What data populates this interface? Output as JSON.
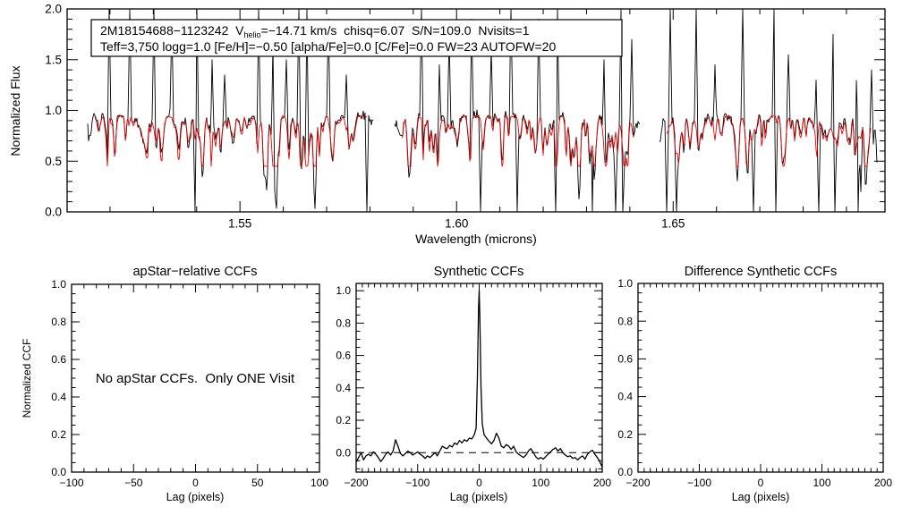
{
  "figure": {
    "description": "APOGEE apVisit spectrum with CCF diagnostic panels",
    "background": "#ffffff"
  },
  "colors": {
    "observed_spectrum": "#000000",
    "model_spectrum": "#e60000",
    "axis": "#000000",
    "background": "#ffffff"
  },
  "annotation": {
    "line1_pre": "2M18154688−1123242  V",
    "line1_sub": "helio",
    "line1_post": "=−14.71 km/s  chisq=6.07  S/N=109.0  Nvisits=1",
    "line2": "Teff=3,750 logg=1.0 [Fe/H]=−0.50 [alpha/Fe]=0.0 [C/Fe]=0.0 FW=23 AUTOFW=20"
  },
  "chart_data": [
    {
      "id": "spectrum",
      "type": "line",
      "title": "",
      "xlabel": "Wavelength (microns)",
      "ylabel": "Normalized Flux",
      "xlim": [
        1.5101,
        1.6989
      ],
      "ylim": [
        0.0,
        2.0
      ],
      "xticks_major": [
        1.55,
        1.6,
        1.65
      ],
      "xtick_labels": [
        "1.55",
        "1.60",
        "1.65"
      ],
      "xtick_minor_step": 0.01,
      "yticks_major": [
        0.0,
        0.5,
        1.0,
        1.5,
        2.0
      ],
      "ytick_labels": [
        "0.0",
        "0.5",
        "1.0",
        "1.5",
        "2.0"
      ],
      "ytick_minor_step": 0.1,
      "grid": false,
      "seed": 20231107,
      "series": [
        {
          "name": "observed visit spectrum",
          "color": "#000000",
          "continuum": 0.95,
          "noise_sigma": 0.02,
          "chunks": [
            [
              1.5148,
              1.5809
            ],
            [
              1.5857,
              1.6425
            ],
            [
              1.6468,
              1.6972
            ]
          ]
        },
        {
          "name": "best-fit synthetic model",
          "color": "#e60000",
          "continuum": 0.94,
          "noise_sigma": 0.009,
          "chunks": [
            [
              1.5164,
              1.5794
            ],
            [
              1.5872,
              1.641
            ],
            [
              1.6483,
              1.6957
            ]
          ]
        }
      ],
      "absorption_lines": {
        "density_per_micron": 1800,
        "depth_min": 0.04,
        "depth_max": 0.36
      },
      "sky_spikes_up": [
        [
          1.5198,
          2.0
        ],
        [
          1.5246,
          2.0
        ],
        [
          1.5301,
          2.0
        ],
        [
          1.5343,
          1.85
        ],
        [
          1.54,
          2.0
        ],
        [
          1.5435,
          1.5
        ],
        [
          1.5465,
          1.35
        ],
        [
          1.5543,
          2.0
        ],
        [
          1.5576,
          1.65
        ],
        [
          1.5607,
          1.5
        ],
        [
          1.5637,
          2.0
        ],
        [
          1.5654,
          2.0
        ],
        [
          1.5705,
          1.9
        ],
        [
          1.5745,
          1.35
        ],
        [
          1.592,
          2.0
        ],
        [
          1.596,
          1.45
        ],
        [
          1.5982,
          1.75
        ],
        [
          1.6035,
          1.9
        ],
        [
          1.608,
          1.6
        ],
        [
          1.6125,
          2.0
        ],
        [
          1.619,
          1.9
        ],
        [
          1.6233,
          2.0
        ],
        [
          1.6313,
          1.8
        ],
        [
          1.634,
          1.5
        ],
        [
          1.638,
          2.0
        ],
        [
          1.6405,
          1.7
        ],
        [
          1.6493,
          2.0
        ],
        [
          1.6553,
          2.0
        ],
        [
          1.6597,
          1.45
        ],
        [
          1.666,
          2.0
        ],
        [
          1.6733,
          2.0
        ],
        [
          1.6765,
          1.55
        ],
        [
          1.683,
          1.3
        ],
        [
          1.687,
          1.75
        ],
        [
          1.6925,
          2.0
        ],
        [
          1.6958,
          1.4
        ]
      ],
      "sky_spikes_down": [
        [
          1.5397,
          0.0
        ],
        [
          1.5558,
          0.35
        ],
        [
          1.5793,
          0.0
        ],
        [
          1.6056,
          0.0
        ],
        [
          1.6139,
          0.0
        ],
        [
          1.6228,
          0.0
        ],
        [
          1.6314,
          0.0
        ],
        [
          1.6368,
          0.0
        ],
        [
          1.6383,
          0.0
        ],
        [
          1.6486,
          0.0
        ],
        [
          1.6507,
          0.0
        ],
        [
          1.6686,
          0.0
        ],
        [
          1.6736,
          0.0
        ],
        [
          1.6837,
          0.0
        ],
        [
          1.6874,
          0.0
        ],
        [
          1.6926,
          0.0
        ],
        [
          1.6934,
          0.2
        ]
      ]
    },
    {
      "id": "apstar_ccf",
      "type": "line",
      "title": "apStar−relative CCFs",
      "xlabel": "Lag (pixels)",
      "ylabel": "Normalized CCF",
      "message": "No apStar CCFs.  Only ONE Visit",
      "xlim": [
        -100,
        100
      ],
      "ylim": [
        0.0,
        1.0
      ],
      "xticks_major": [
        -100,
        -50,
        0,
        50,
        100
      ],
      "xtick_labels": [
        "−100",
        "−50",
        "0",
        "50",
        "100"
      ],
      "xtick_minor_step": 10,
      "yticks_major": [
        0.0,
        0.2,
        0.4,
        0.6,
        0.8,
        1.0
      ],
      "ytick_labels": [
        "0.0",
        "0.2",
        "0.4",
        "0.6",
        "0.8",
        "1.0"
      ],
      "ytick_minor_step": 0.05,
      "grid": false,
      "series": []
    },
    {
      "id": "synthetic_ccf",
      "type": "line",
      "title": "Synthetic CCFs",
      "xlabel": "Lag (pixels)",
      "xlim": [
        -200,
        200
      ],
      "ylim": [
        -0.12,
        1.045
      ],
      "xticks_major": [
        -200,
        -100,
        0,
        100,
        200
      ],
      "xtick_labels": [
        "−200",
        "−100",
        "0",
        "100",
        "200"
      ],
      "xtick_minor_step": 10,
      "yticks_major": [
        0.0,
        0.2,
        0.4,
        0.6,
        0.8,
        1.0
      ],
      "ytick_labels": [
        "0.0",
        "0.2",
        "0.4",
        "0.6",
        "0.8",
        "1.0"
      ],
      "ytick_minor_step": 0.05,
      "grid": false,
      "zero_line_dashed": true,
      "series": [
        {
          "name": "synthetic CCF",
          "color": "#000000",
          "points": [
            [
              -200,
              -0.06
            ],
            [
              -196,
              -0.03
            ],
            [
              -192,
              0.0
            ],
            [
              -188,
              -0.045
            ],
            [
              -184,
              -0.02
            ],
            [
              -180,
              -0.01
            ],
            [
              -176,
              -0.02
            ],
            [
              -172,
              0.005
            ],
            [
              -168,
              -0.01
            ],
            [
              -164,
              -0.03
            ],
            [
              -160,
              -0.055
            ],
            [
              -156,
              -0.035
            ],
            [
              -152,
              -0.01
            ],
            [
              -148,
              0.005
            ],
            [
              -144,
              -0.015
            ],
            [
              -140,
              0.01
            ],
            [
              -136,
              0.08
            ],
            [
              -132,
              0.04
            ],
            [
              -128,
              -0.005
            ],
            [
              -124,
              -0.02
            ],
            [
              -120,
              -0.005
            ],
            [
              -116,
              0.01
            ],
            [
              -112,
              0.0
            ],
            [
              -108,
              -0.015
            ],
            [
              -104,
              -0.005
            ],
            [
              -100,
              0.005
            ],
            [
              -96,
              -0.01
            ],
            [
              -92,
              -0.02
            ],
            [
              -88,
              -0.035
            ],
            [
              -84,
              -0.02
            ],
            [
              -80,
              -0.03
            ],
            [
              -76,
              -0.015
            ],
            [
              -72,
              0.0
            ],
            [
              -68,
              -0.02
            ],
            [
              -64,
              0.01
            ],
            [
              -60,
              0.04
            ],
            [
              -56,
              0.03
            ],
            [
              -52,
              0.025
            ],
            [
              -48,
              0.045
            ],
            [
              -44,
              0.035
            ],
            [
              -40,
              0.06
            ],
            [
              -36,
              0.05
            ],
            [
              -32,
              0.075
            ],
            [
              -28,
              0.06
            ],
            [
              -24,
              0.08
            ],
            [
              -20,
              0.07
            ],
            [
              -16,
              0.09
            ],
            [
              -12,
              0.085
            ],
            [
              -8,
              0.11
            ],
            [
              -5,
              0.15
            ],
            [
              -3,
              0.45
            ],
            [
              -1,
              0.9
            ],
            [
              0,
              1.0
            ],
            [
              1,
              0.85
            ],
            [
              3,
              0.4
            ],
            [
              5,
              0.18
            ],
            [
              8,
              0.11
            ],
            [
              12,
              0.09
            ],
            [
              16,
              0.07
            ],
            [
              20,
              0.055
            ],
            [
              24,
              0.075
            ],
            [
              28,
              0.12
            ],
            [
              32,
              0.09
            ],
            [
              36,
              0.04
            ],
            [
              40,
              0.03
            ],
            [
              44,
              0.05
            ],
            [
              48,
              0.04
            ],
            [
              52,
              0.02
            ],
            [
              56,
              0.04
            ],
            [
              60,
              0.005
            ],
            [
              64,
              -0.01
            ],
            [
              68,
              -0.02
            ],
            [
              72,
              -0.03
            ],
            [
              76,
              -0.015
            ],
            [
              80,
              0.01
            ],
            [
              84,
              0.025
            ],
            [
              88,
              0.0
            ],
            [
              92,
              -0.025
            ],
            [
              96,
              -0.04
            ],
            [
              100,
              -0.03
            ],
            [
              104,
              -0.04
            ],
            [
              108,
              -0.025
            ],
            [
              112,
              -0.01
            ],
            [
              116,
              0.005
            ],
            [
              120,
              0.02
            ],
            [
              124,
              0.03
            ],
            [
              128,
              0.01
            ],
            [
              132,
              0.025
            ],
            [
              136,
              0.0
            ],
            [
              140,
              -0.015
            ],
            [
              144,
              -0.025
            ],
            [
              148,
              -0.02
            ],
            [
              152,
              -0.035
            ],
            [
              156,
              -0.03
            ],
            [
              160,
              -0.045
            ],
            [
              164,
              -0.03
            ],
            [
              168,
              -0.02
            ],
            [
              172,
              -0.04
            ],
            [
              176,
              -0.01
            ],
            [
              180,
              0.005
            ],
            [
              184,
              0.015
            ],
            [
              188,
              -0.01
            ],
            [
              192,
              -0.03
            ],
            [
              196,
              -0.055
            ],
            [
              200,
              -0.09
            ]
          ]
        }
      ]
    },
    {
      "id": "difference_ccf",
      "type": "line",
      "title": "Difference Synthetic CCFs",
      "xlabel": "Lag (pixels)",
      "xlim": [
        -200,
        200
      ],
      "ylim": [
        0.0,
        1.0
      ],
      "xticks_major": [
        -200,
        -100,
        0,
        100,
        200
      ],
      "xtick_labels": [
        "−200",
        "−100",
        "0",
        "100",
        "200"
      ],
      "xtick_minor_step": 10,
      "yticks_major": [
        0.0,
        0.2,
        0.4,
        0.6,
        0.8,
        1.0
      ],
      "ytick_labels": [
        "0.0",
        "0.2",
        "0.4",
        "0.6",
        "0.8",
        "1.0"
      ],
      "ytick_minor_step": 0.05,
      "grid": false,
      "series": []
    }
  ]
}
